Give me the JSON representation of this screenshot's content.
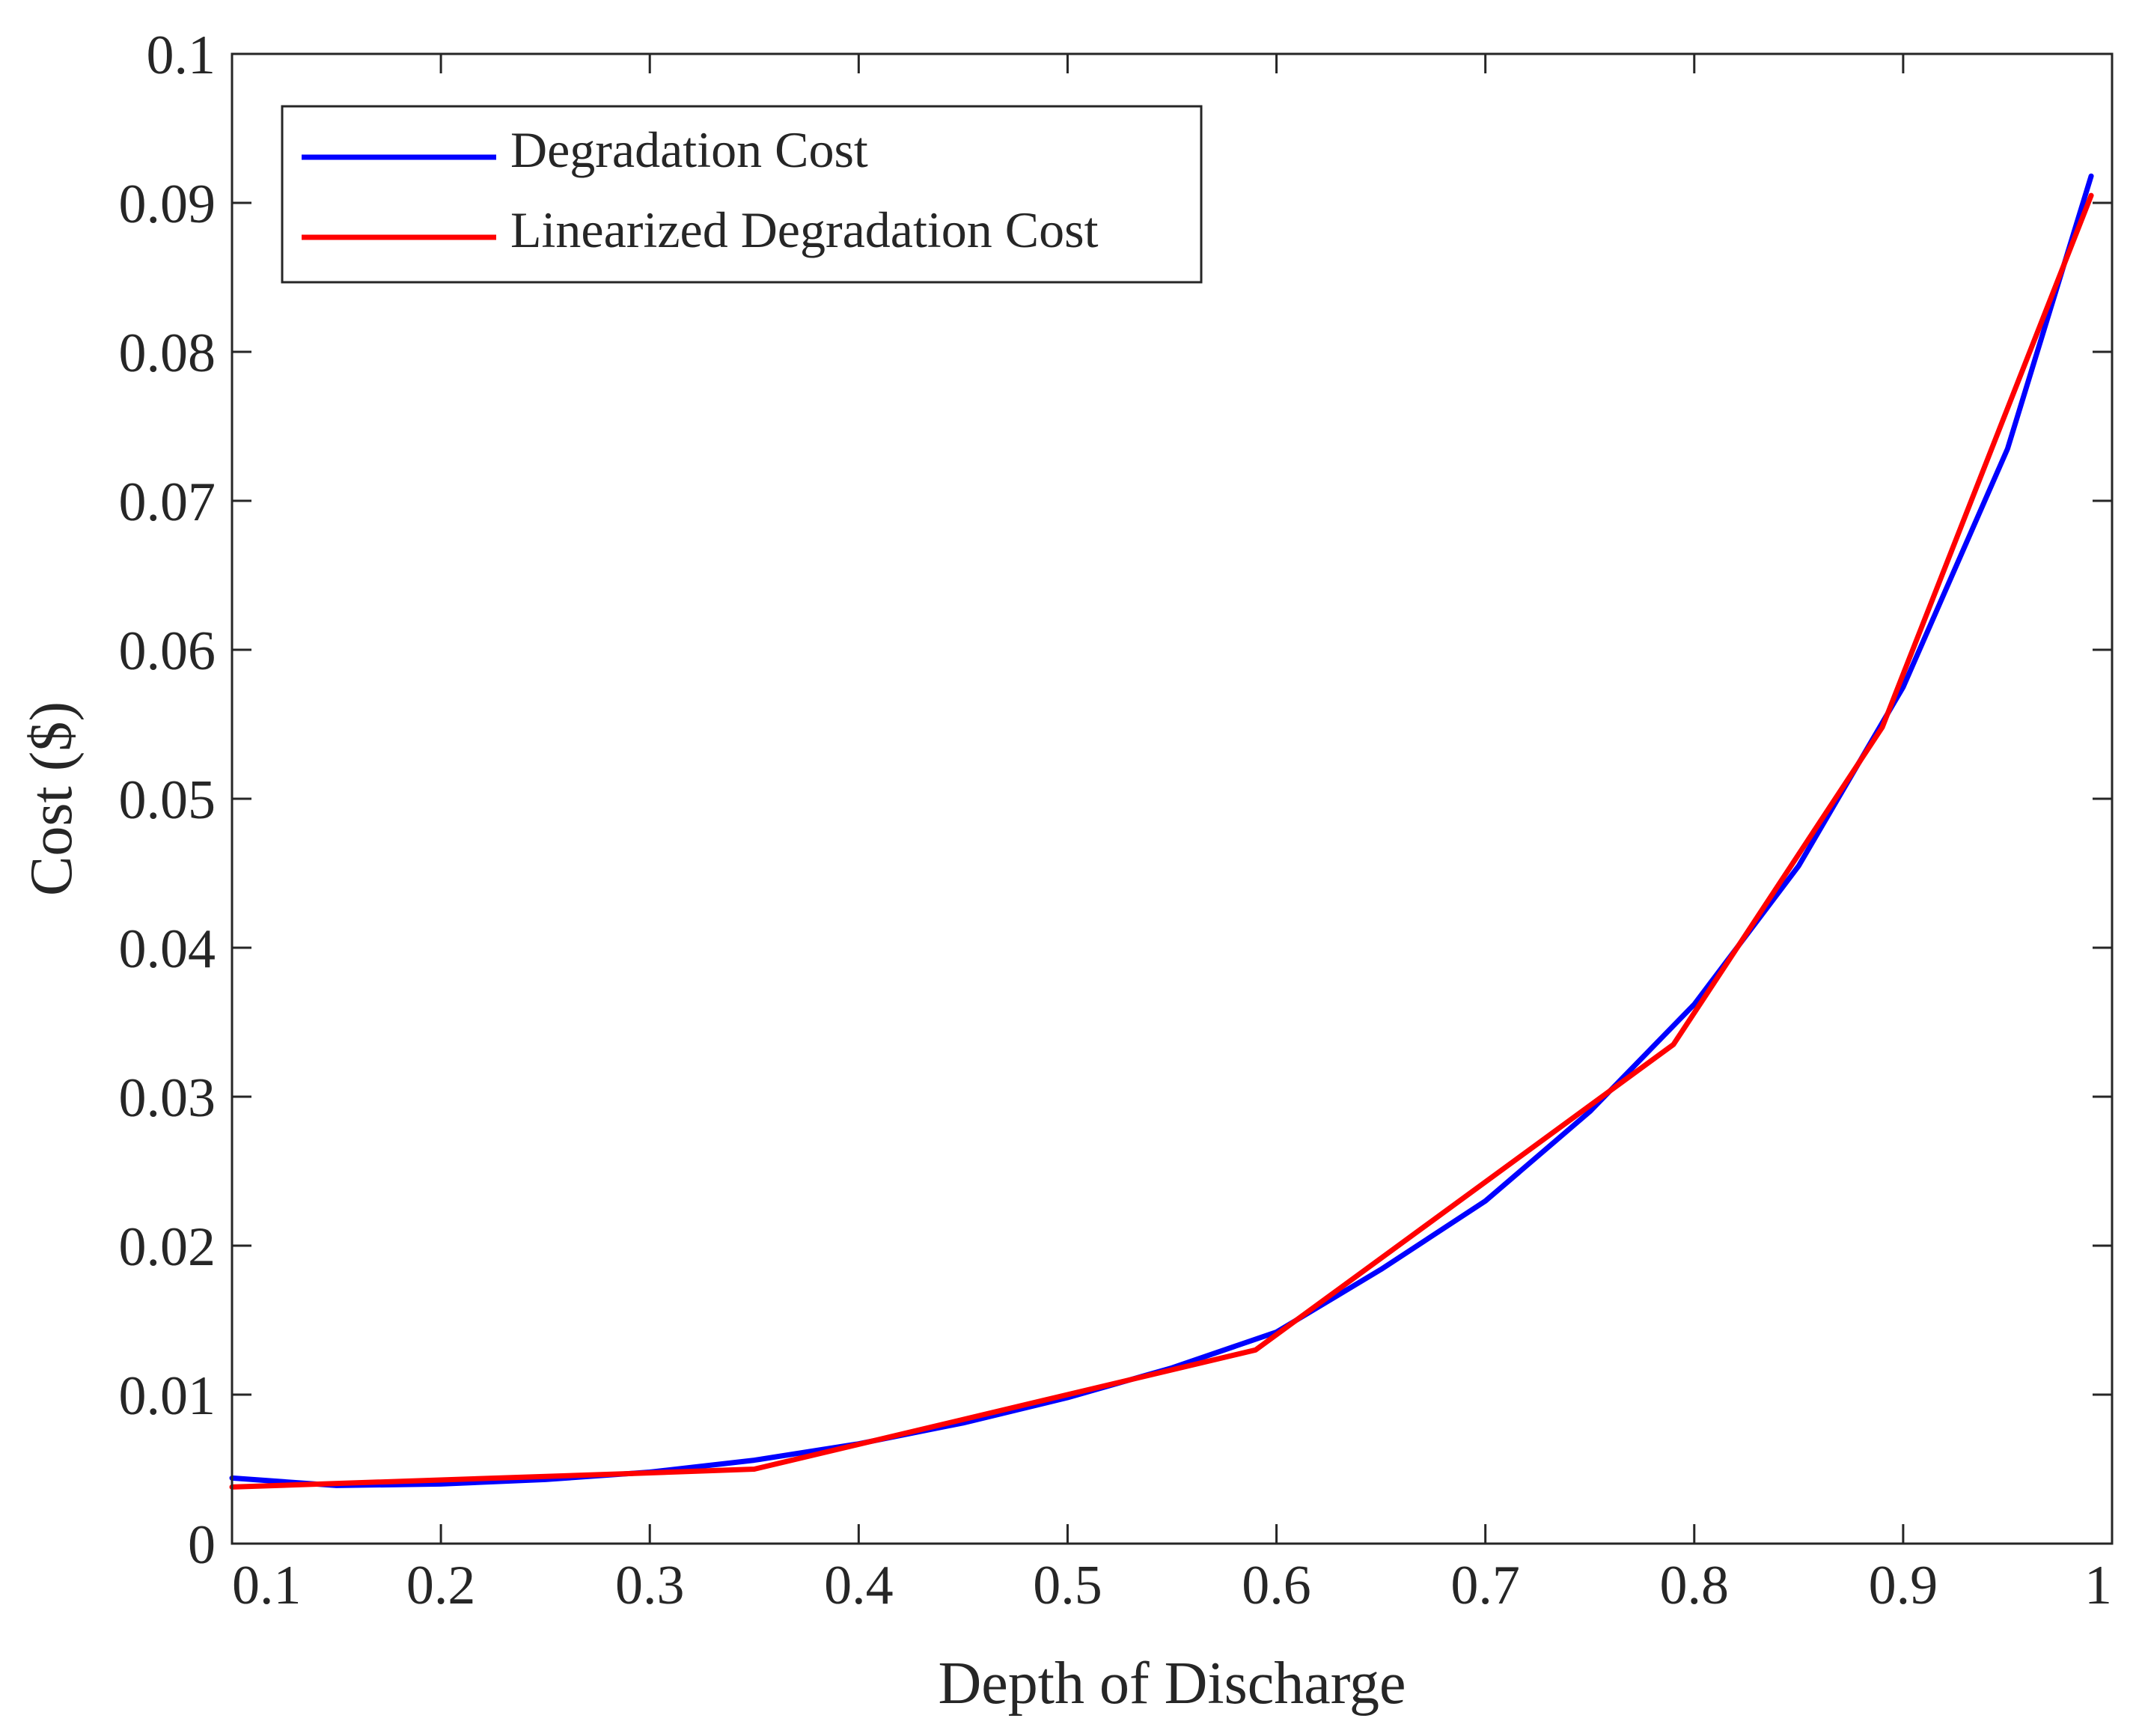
{
  "chart_data": {
    "type": "line",
    "title": "",
    "xlabel": "Depth of Discharge",
    "ylabel": "Cost ($)",
    "xlim": [
      0.1,
      1
    ],
    "ylim": [
      0,
      0.1
    ],
    "xticks": [
      0.1,
      0.2,
      0.3,
      0.4,
      0.5,
      0.6,
      0.7,
      0.8,
      0.9,
      1
    ],
    "xtick_labels": [
      "0.1",
      "0.2",
      "0.3",
      "0.4",
      "0.5",
      "0.6",
      "0.7",
      "0.8",
      "0.9",
      "1"
    ],
    "yticks": [
      0,
      0.01,
      0.02,
      0.03,
      0.04,
      0.05,
      0.06,
      0.07,
      0.08,
      0.09,
      0.1
    ],
    "ytick_labels": [
      "0",
      "0.01",
      "0.02",
      "0.03",
      "0.04",
      "0.05",
      "0.06",
      "0.07",
      "0.08",
      "0.09",
      "0.1"
    ],
    "grid": false,
    "legend_position": "top-left",
    "series": [
      {
        "name": "Degradation Cost",
        "color": "#0000ff",
        "x": [
          0.1,
          0.15,
          0.2,
          0.25,
          0.3,
          0.35,
          0.4,
          0.45,
          0.5,
          0.55,
          0.6,
          0.65,
          0.7,
          0.75,
          0.8,
          0.85,
          0.9,
          0.95,
          0.99
        ],
        "y": [
          0.0044,
          0.0039,
          0.004,
          0.0043,
          0.0048,
          0.0056,
          0.0067,
          0.0081,
          0.0098,
          0.0118,
          0.0142,
          0.0184,
          0.023,
          0.029,
          0.0362,
          0.0455,
          0.0575,
          0.0735,
          0.0918
        ]
      },
      {
        "name": "Linearized Degradation Cost",
        "color": "#ff0000",
        "x": [
          0.1,
          0.29,
          0.35,
          0.59,
          0.79,
          0.89,
          0.99
        ],
        "y": [
          0.0038,
          0.0047,
          0.005,
          0.013,
          0.0335,
          0.0548,
          0.0905
        ]
      }
    ]
  }
}
